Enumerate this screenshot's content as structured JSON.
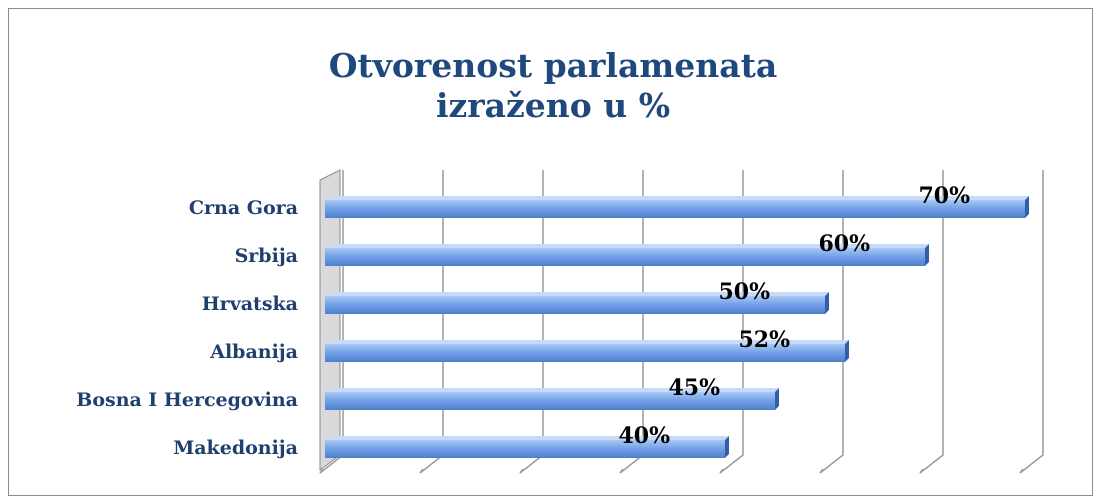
{
  "chart_data": {
    "type": "bar",
    "orientation": "horizontal",
    "title": "Otvorenost parlamenata",
    "subtitle": "izraženo u %",
    "categories": [
      "Crna Gora",
      "Srbija",
      "Hrvatska",
      "Albanija",
      "Bosna I Hercegovina",
      "Makedonija"
    ],
    "values": [
      70,
      60,
      50,
      52,
      45,
      40
    ],
    "value_labels": [
      "70%",
      "60%",
      "50%",
      "52%",
      "45%",
      "40%"
    ],
    "color": "#6f9fe6",
    "xlim": [
      0,
      70
    ],
    "xticks": [
      0,
      10,
      20,
      30,
      40,
      50,
      60,
      70
    ],
    "grid": true
  }
}
